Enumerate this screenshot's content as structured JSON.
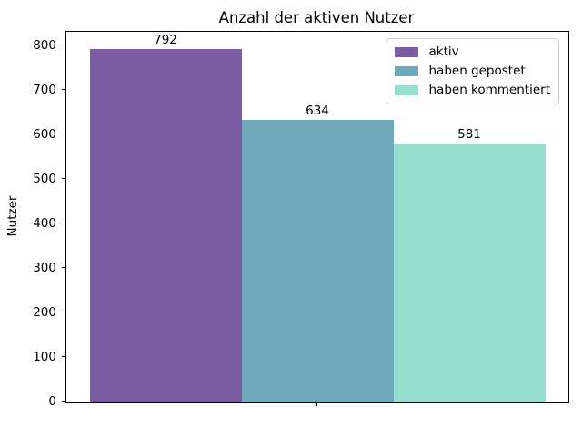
{
  "chart_data": {
    "type": "bar",
    "title": "Anzahl der aktiven Nutzer",
    "xlabel": "",
    "ylabel": "Nutzer",
    "categories": [
      ""
    ],
    "series": [
      {
        "name": "aktiv",
        "values": [
          792
        ],
        "color": "#7c5ca2"
      },
      {
        "name": "haben gepostet",
        "values": [
          634
        ],
        "color": "#6fa9bc"
      },
      {
        "name": "haben kommentiert",
        "values": [
          581
        ],
        "color": "#96dfce"
      }
    ],
    "value_labels": [
      "792",
      "634",
      "581"
    ],
    "ylim": [
      0,
      831.6
    ],
    "yticks": [
      0,
      100,
      200,
      300,
      400,
      500,
      600,
      700,
      800
    ],
    "grid": false,
    "legend": {
      "position": "upper right",
      "entries": [
        "aktiv",
        "haben gepostet",
        "haben kommentiert"
      ]
    },
    "colors": {
      "axis": "#000000",
      "text": "#000000",
      "background": "#ffffff",
      "legend_border": "#cccccc"
    }
  }
}
